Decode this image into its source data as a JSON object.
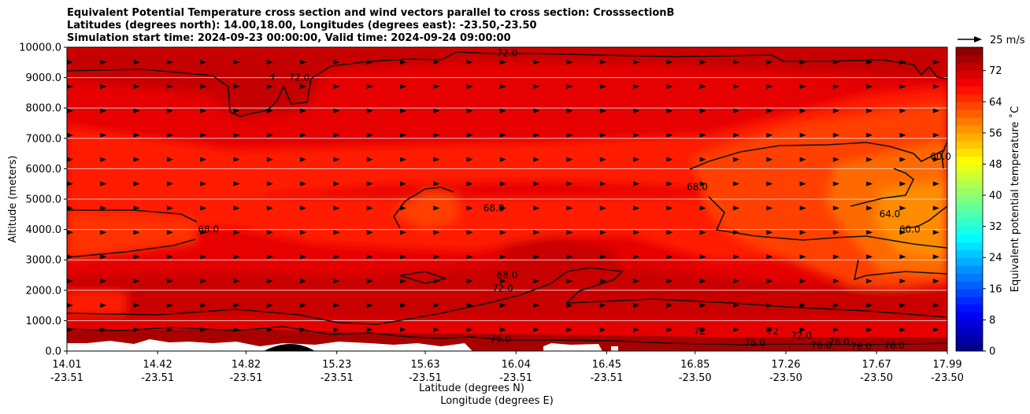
{
  "chart_data": {
    "type": "heatmap",
    "title_lines": [
      "Equivalent Potential Temperature cross section and wind vectors parallel to cross section: CrosssectionB",
      "Latitudes (degrees north): 14.00,18.00, Longitudes (degrees east): -23.50,-23.50",
      "Simulation start time: 2024-09-23 00:00:00, Valid time: 2024-09-24 09:00:00"
    ],
    "ylabel": "Altitude (meters)",
    "xlabel_lines": [
      "Latitude (degrees N)",
      "Longitude (degrees E)"
    ],
    "ylim": [
      0,
      10000
    ],
    "y_ticks": [
      "0.0",
      "1000.0",
      "2000.0",
      "3000.0",
      "4000.0",
      "5000.0",
      "6000.0",
      "7000.0",
      "8000.0",
      "9000.0",
      "10000.0"
    ],
    "y_tick_values": [
      0,
      1000,
      2000,
      3000,
      4000,
      5000,
      6000,
      7000,
      8000,
      9000,
      10000
    ],
    "x_ticks": [
      {
        "lat": "14.01",
        "lon": "-23.51",
        "value": 14.01
      },
      {
        "lat": "14.42",
        "lon": "-23.51",
        "value": 14.42
      },
      {
        "lat": "14.82",
        "lon": "-23.51",
        "value": 14.82
      },
      {
        "lat": "15.23",
        "lon": "-23.51",
        "value": 15.23
      },
      {
        "lat": "15.63",
        "lon": "-23.51",
        "value": 15.63
      },
      {
        "lat": "16.04",
        "lon": "-23.51",
        "value": 16.04
      },
      {
        "lat": "16.45",
        "lon": "-23.51",
        "value": 16.45
      },
      {
        "lat": "16.85",
        "lon": "-23.50",
        "value": 16.85
      },
      {
        "lat": "17.26",
        "lon": "-23.50",
        "value": 17.26
      },
      {
        "lat": "17.67",
        "lon": "-23.50",
        "value": 17.67
      },
      {
        "lat": "17.99",
        "lon": "-23.50",
        "value": 17.99
      }
    ],
    "xlim": [
      14.01,
      17.99
    ],
    "grid": "horizontal",
    "colorbar": {
      "label": "Equivalent potential temperature ˚C",
      "ticks": [
        "0",
        "8",
        "16",
        "24",
        "32",
        "40",
        "48",
        "56",
        "64",
        "72"
      ],
      "tick_values": [
        0,
        8,
        16,
        24,
        32,
        40,
        48,
        56,
        64,
        72
      ],
      "range": [
        0,
        78
      ],
      "colormap": "jet"
    },
    "vector_key": {
      "label": "25 m/s",
      "value": 25
    },
    "contour_labels": [
      {
        "text": "72.0",
        "x": 16.0,
        "y": 9700
      },
      {
        "text": "72.0",
        "x": 15.06,
        "y": 8900
      },
      {
        "text": "68.0",
        "x": 14.65,
        "y": 3900
      },
      {
        "text": "68.0",
        "x": 15.94,
        "y": 4600
      },
      {
        "text": "68.0",
        "x": 16.0,
        "y": 2400
      },
      {
        "text": "72.0",
        "x": 15.98,
        "y": 1950
      },
      {
        "text": "68.0",
        "x": 16.86,
        "y": 5300
      },
      {
        "text": "64.0",
        "x": 17.73,
        "y": 4400
      },
      {
        "text": "60.0",
        "x": 17.82,
        "y": 3900
      },
      {
        "text": "60.0",
        "x": 17.96,
        "y": 6300
      },
      {
        "text": "76.0",
        "x": 15.97,
        "y": 300
      },
      {
        "text": "76.0",
        "x": 17.6,
        "y": 40
      },
      {
        "text": "76.0",
        "x": 17.75,
        "y": 80
      },
      {
        "text": "72",
        "x": 16.87,
        "y": 550
      },
      {
        "text": "72",
        "x": 17.2,
        "y": 550
      },
      {
        "text": "76.0",
        "x": 17.12,
        "y": 170
      },
      {
        "text": "76.0",
        "x": 17.5,
        "y": 200
      },
      {
        "text": "76.0",
        "x": 17.42,
        "y": 80
      },
      {
        "text": "72.0",
        "x": 17.33,
        "y": 400
      }
    ],
    "colors": {
      "dark_red": "#a80000",
      "red": "#e60000",
      "bright_red": "#ff1a00",
      "orange_red": "#ff4000",
      "orange": "#ff7a00"
    }
  }
}
